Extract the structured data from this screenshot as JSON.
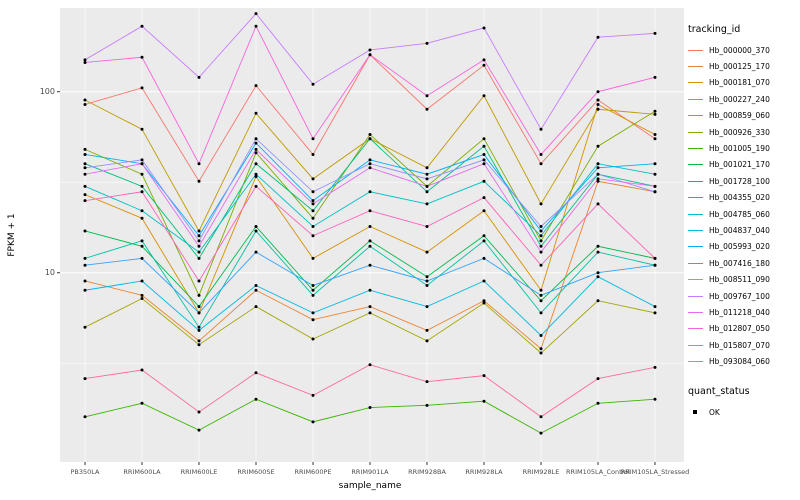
{
  "chart_data": {
    "type": "line",
    "title": "",
    "xlabel": "sample_name",
    "ylabel": "FPKM + 1",
    "y_scale": "log10",
    "y_ticks": [
      10,
      100
    ],
    "y_tick_labels": [
      "10",
      "100"
    ],
    "y_minor_ticks": [
      3.162,
      31.62
    ],
    "ylim": [
      0.9,
      290
    ],
    "grid": true,
    "legend_position": "right",
    "panel_bg": "#EBEBEB",
    "grid_color": "#FFFFFF",
    "tick_label_color": "#4D4D4D",
    "point_color": "#000000",
    "legend_title": "tracking_id",
    "categories": [
      "PB350LA",
      "RRIM600LA",
      "RRIM600LE",
      "RRIM600SE",
      "RRIM600PE",
      "RRIM901LA",
      "RRIM928BA",
      "RRIM928LA",
      "RRIM928LE",
      "RRIM105LA_Control",
      "RRIM105LA_Stressed"
    ],
    "series": [
      {
        "name": "Hb_000000_370",
        "color": "#F8766D",
        "values": [
          85,
          105,
          32,
          108,
          45,
          160,
          80,
          140,
          40,
          90,
          55
        ]
      },
      {
        "name": "Hb_000125_170",
        "color": "#EA8331",
        "values": [
          9,
          7.5,
          4.2,
          8,
          5.5,
          6.5,
          4.8,
          7,
          3.8,
          32,
          28
        ]
      },
      {
        "name": "Hb_000181_070",
        "color": "#D89000",
        "values": [
          27,
          20,
          6,
          34,
          12,
          18,
          13,
          22,
          8,
          85,
          58
        ]
      },
      {
        "name": "Hb_000227_240",
        "color": "#C09B00",
        "values": [
          90,
          62,
          17,
          76,
          33,
          55,
          38,
          95,
          24,
          80,
          75
        ]
      },
      {
        "name": "Hb_000859_060",
        "color": "#A3A500",
        "values": [
          5,
          7.2,
          4,
          6.5,
          4.3,
          6,
          4.2,
          6.8,
          3.6,
          7,
          6
        ]
      },
      {
        "name": "Hb_000926_330",
        "color": "#7CAE00",
        "values": [
          48,
          35,
          7.5,
          46,
          20,
          58,
          30,
          55,
          15,
          50,
          78
        ]
      },
      {
        "name": "Hb_001005_190",
        "color": "#39B600",
        "values": [
          1.6,
          1.9,
          1.35,
          2,
          1.5,
          1.8,
          1.85,
          1.95,
          1.3,
          1.9,
          2
        ]
      },
      {
        "name": "Hb_001021_170",
        "color": "#00BB4E",
        "values": [
          17,
          14,
          6.5,
          18,
          8,
          15,
          9.5,
          16,
          7,
          14,
          12
        ]
      },
      {
        "name": "Hb_001728_100",
        "color": "#00BF7D",
        "values": [
          40,
          30,
          12,
          40,
          22,
          55,
          28,
          50,
          14,
          35,
          30
        ]
      },
      {
        "name": "Hb_004355_020",
        "color": "#00C1A3",
        "values": [
          12,
          15,
          5,
          17,
          7.5,
          14,
          8.5,
          15,
          6,
          13,
          11
        ]
      },
      {
        "name": "Hb_004785_060",
        "color": "#00BFC4",
        "values": [
          30,
          22,
          13,
          35,
          18,
          28,
          24,
          32,
          16,
          40,
          35
        ]
      },
      {
        "name": "Hb_004837_040",
        "color": "#00BAE0",
        "values": [
          8,
          9,
          4.8,
          8.5,
          6,
          8,
          6.5,
          9,
          4.5,
          9.5,
          6.5
        ]
      },
      {
        "name": "Hb_005993_020",
        "color": "#00B0F6",
        "values": [
          45,
          40,
          16,
          52,
          25,
          42,
          35,
          45,
          17,
          38,
          40
        ]
      },
      {
        "name": "Hb_007416_180",
        "color": "#35A2FF",
        "values": [
          11,
          12,
          6,
          13,
          8.5,
          11,
          9,
          12,
          7.5,
          10,
          11
        ]
      },
      {
        "name": "Hb_008511_090",
        "color": "#9590FF",
        "values": [
          38,
          42,
          15,
          55,
          28,
          40,
          33,
          42,
          18,
          35,
          28
        ]
      },
      {
        "name": "Hb_009767_100",
        "color": "#C77CFF",
        "values": [
          150,
          230,
          120,
          270,
          110,
          170,
          185,
          225,
          62,
          200,
          210
        ]
      },
      {
        "name": "Hb_011218_040",
        "color": "#E76BF3",
        "values": [
          35,
          40,
          14,
          48,
          24,
          38,
          30,
          40,
          13,
          33,
          30
        ]
      },
      {
        "name": "Hb_012807_050",
        "color": "#FA62DB",
        "values": [
          145,
          155,
          40,
          230,
          55,
          160,
          95,
          150,
          45,
          100,
          120
        ]
      },
      {
        "name": "Hb_015807_070",
        "color": "#FF62BC",
        "values": [
          25,
          28,
          9,
          30,
          16,
          22,
          18,
          26,
          11,
          24,
          12
        ]
      },
      {
        "name": "Hb_093084_060",
        "color": "#FF6A98",
        "values": [
          2.6,
          2.9,
          1.7,
          2.8,
          2.1,
          3.1,
          2.5,
          2.7,
          1.6,
          2.6,
          3
        ]
      }
    ],
    "legend2": {
      "title": "quant_status",
      "items": [
        {
          "label": "OK",
          "marker": "black-point"
        }
      ]
    }
  }
}
